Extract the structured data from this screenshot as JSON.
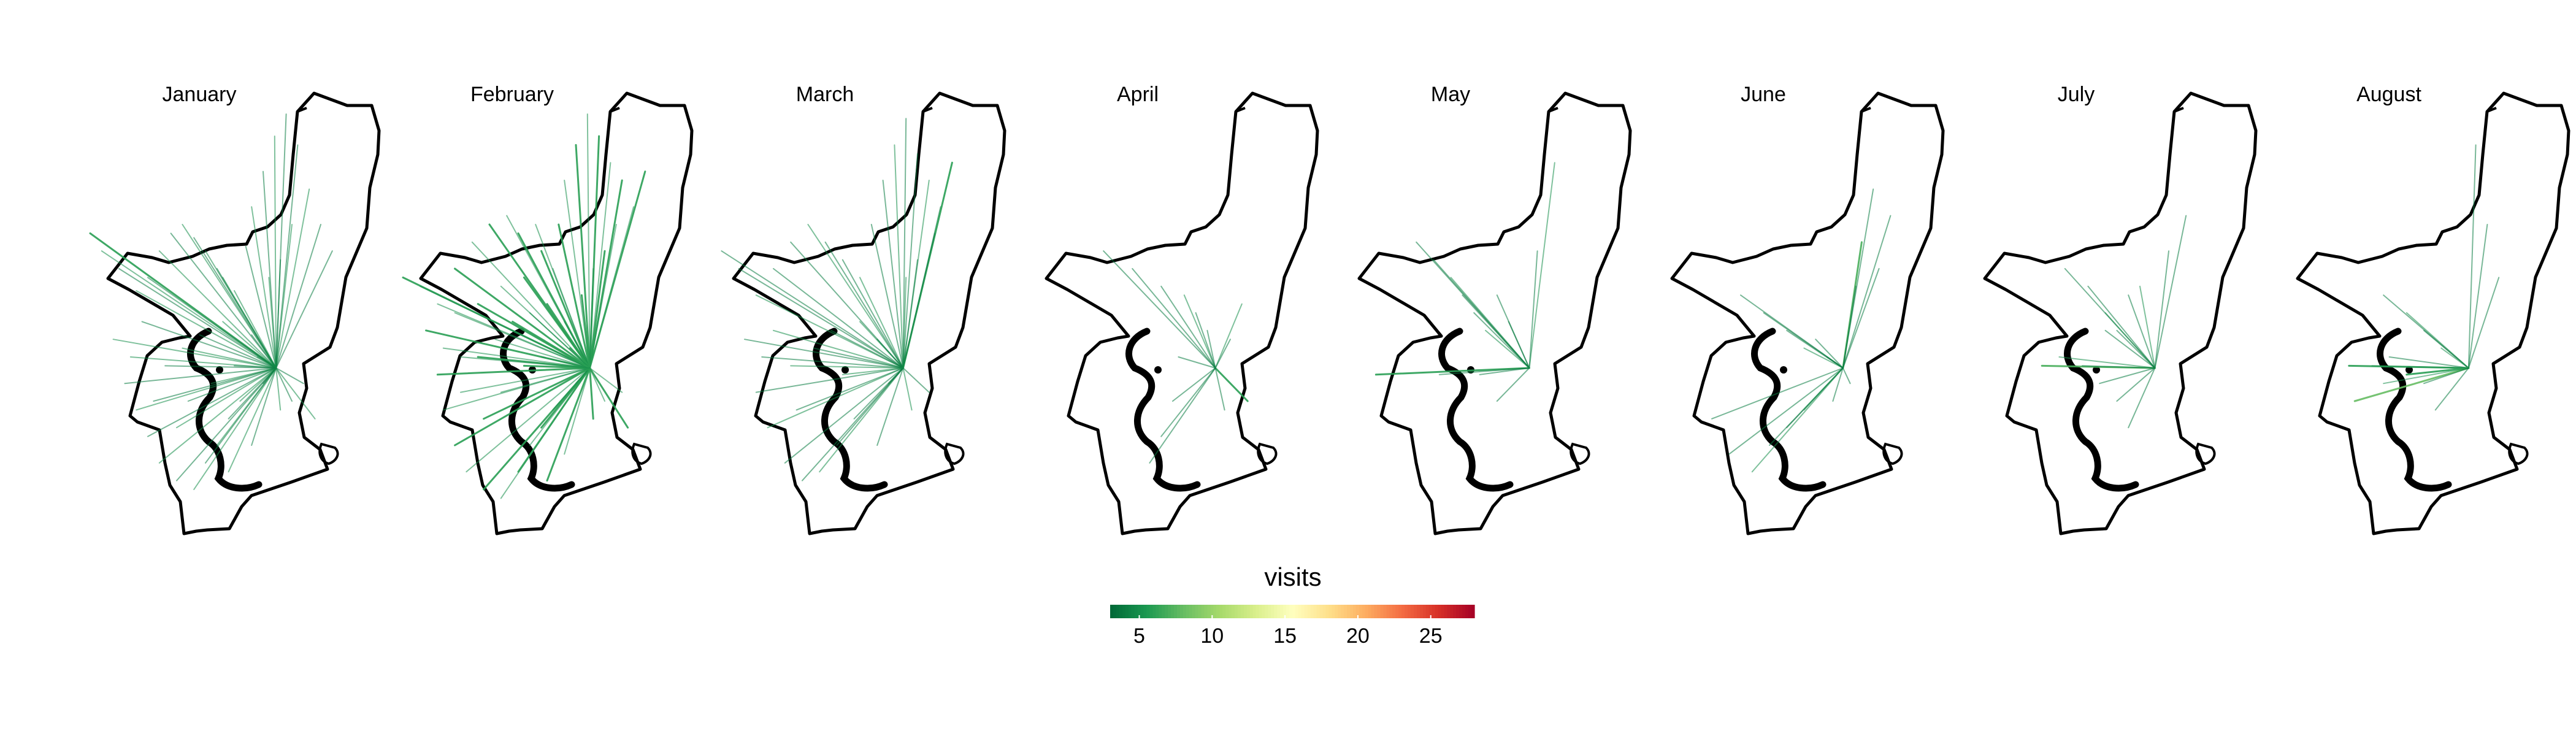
{
  "panels": [
    {
      "month": "January",
      "hub": [
        0.745,
        0.625
      ],
      "flows": [
        [
          0.1,
          0.32,
          6
        ],
        [
          0.14,
          0.36,
          5
        ],
        [
          0.2,
          0.4,
          4
        ],
        [
          0.26,
          0.45,
          5
        ],
        [
          0.3,
          0.42,
          4
        ],
        [
          0.34,
          0.36,
          5
        ],
        [
          0.38,
          0.32,
          4
        ],
        [
          0.42,
          0.3,
          5
        ],
        [
          0.46,
          0.33,
          4
        ],
        [
          0.5,
          0.36,
          5
        ],
        [
          0.54,
          0.4,
          4
        ],
        [
          0.6,
          0.45,
          5
        ],
        [
          0.64,
          0.35,
          4
        ],
        [
          0.66,
          0.26,
          5
        ],
        [
          0.7,
          0.18,
          4
        ],
        [
          0.74,
          0.1,
          5
        ],
        [
          0.78,
          0.05,
          4
        ],
        [
          0.82,
          0.12,
          4
        ],
        [
          0.86,
          0.22,
          5
        ],
        [
          0.9,
          0.3,
          4
        ],
        [
          0.94,
          0.36,
          4
        ],
        [
          0.8,
          0.3,
          5
        ],
        [
          0.76,
          0.38,
          4
        ],
        [
          0.72,
          0.42,
          5
        ],
        [
          0.24,
          0.6,
          5
        ],
        [
          0.22,
          0.66,
          4
        ],
        [
          0.26,
          0.72,
          5
        ],
        [
          0.3,
          0.78,
          4
        ],
        [
          0.34,
          0.84,
          5
        ],
        [
          0.4,
          0.88,
          4
        ],
        [
          0.46,
          0.9,
          5
        ],
        [
          0.5,
          0.84,
          4
        ],
        [
          0.54,
          0.8,
          5
        ],
        [
          0.58,
          0.74,
          4
        ],
        [
          0.62,
          0.7,
          5
        ],
        [
          0.36,
          0.62,
          4
        ],
        [
          0.42,
          0.58,
          5
        ],
        [
          0.48,
          0.55,
          4
        ],
        [
          0.56,
          0.52,
          5
        ],
        [
          0.66,
          0.55,
          4
        ],
        [
          0.68,
          0.6,
          5
        ],
        [
          0.7,
          0.66,
          4
        ],
        [
          0.76,
          0.72,
          5
        ],
        [
          0.8,
          0.7,
          4
        ],
        [
          0.84,
          0.66,
          4
        ],
        [
          0.88,
          0.74,
          5
        ],
        [
          0.66,
          0.8,
          4
        ],
        [
          0.58,
          0.86,
          5
        ],
        [
          0.28,
          0.52,
          4
        ],
        [
          0.18,
          0.56,
          5
        ],
        [
          0.32,
          0.7,
          4
        ],
        [
          0.4,
          0.76,
          5
        ],
        [
          0.44,
          0.7,
          4
        ],
        [
          0.52,
          0.66,
          5
        ],
        [
          0.6,
          0.62,
          4
        ],
        [
          0.56,
          0.42,
          5
        ]
      ]
    },
    {
      "month": "February",
      "hub": [
        0.748,
        0.625
      ],
      "flows": [
        [
          0.1,
          0.42,
          6
        ],
        [
          0.16,
          0.44,
          5
        ],
        [
          0.22,
          0.48,
          5
        ],
        [
          0.28,
          0.4,
          6
        ],
        [
          0.34,
          0.34,
          5
        ],
        [
          0.4,
          0.3,
          6
        ],
        [
          0.46,
          0.28,
          5
        ],
        [
          0.5,
          0.32,
          6
        ],
        [
          0.56,
          0.3,
          5
        ],
        [
          0.58,
          0.36,
          6
        ],
        [
          0.62,
          0.4,
          5
        ],
        [
          0.64,
          0.3,
          6
        ],
        [
          0.66,
          0.2,
          5
        ],
        [
          0.7,
          0.12,
          6
        ],
        [
          0.74,
          0.05,
          5
        ],
        [
          0.78,
          0.1,
          6
        ],
        [
          0.82,
          0.16,
          5
        ],
        [
          0.86,
          0.2,
          6
        ],
        [
          0.9,
          0.26,
          5
        ],
        [
          0.94,
          0.18,
          6
        ],
        [
          0.84,
          0.3,
          5
        ],
        [
          0.8,
          0.36,
          6
        ],
        [
          0.76,
          0.4,
          5
        ],
        [
          0.72,
          0.46,
          6
        ],
        [
          0.24,
          0.58,
          5
        ],
        [
          0.22,
          0.64,
          6
        ],
        [
          0.24,
          0.72,
          5
        ],
        [
          0.28,
          0.8,
          6
        ],
        [
          0.32,
          0.86,
          5
        ],
        [
          0.38,
          0.9,
          6
        ],
        [
          0.44,
          0.92,
          5
        ],
        [
          0.5,
          0.86,
          6
        ],
        [
          0.54,
          0.8,
          5
        ],
        [
          0.58,
          0.76,
          6
        ],
        [
          0.62,
          0.72,
          5
        ],
        [
          0.36,
          0.6,
          6
        ],
        [
          0.42,
          0.56,
          5
        ],
        [
          0.48,
          0.52,
          6
        ],
        [
          0.54,
          0.5,
          5
        ],
        [
          0.6,
          0.48,
          6
        ],
        [
          0.66,
          0.52,
          5
        ],
        [
          0.68,
          0.58,
          6
        ],
        [
          0.7,
          0.66,
          5
        ],
        [
          0.76,
          0.74,
          6
        ],
        [
          0.8,
          0.7,
          5
        ],
        [
          0.86,
          0.68,
          5
        ],
        [
          0.88,
          0.76,
          6
        ],
        [
          0.66,
          0.82,
          5
        ],
        [
          0.6,
          0.88,
          6
        ],
        [
          0.28,
          0.5,
          5
        ],
        [
          0.18,
          0.54,
          6
        ],
        [
          0.3,
          0.68,
          5
        ],
        [
          0.38,
          0.74,
          6
        ],
        [
          0.44,
          0.68,
          5
        ],
        [
          0.52,
          0.62,
          6
        ],
        [
          0.58,
          0.6,
          5
        ],
        [
          0.52,
          0.42,
          6
        ],
        [
          0.44,
          0.44,
          5
        ],
        [
          0.36,
          0.48,
          6
        ],
        [
          0.3,
          0.6,
          5
        ]
      ]
    },
    {
      "month": "March",
      "hub": [
        0.75,
        0.625
      ],
      "flows": [
        [
          0.12,
          0.36,
          4
        ],
        [
          0.18,
          0.4,
          4
        ],
        [
          0.24,
          0.46,
          5
        ],
        [
          0.3,
          0.4,
          4
        ],
        [
          0.36,
          0.34,
          4
        ],
        [
          0.42,
          0.3,
          5
        ],
        [
          0.48,
          0.34,
          4
        ],
        [
          0.54,
          0.38,
          4
        ],
        [
          0.6,
          0.42,
          5
        ],
        [
          0.64,
          0.3,
          4
        ],
        [
          0.68,
          0.2,
          4
        ],
        [
          0.72,
          0.12,
          5
        ],
        [
          0.76,
          0.06,
          4
        ],
        [
          0.8,
          0.14,
          4
        ],
        [
          0.84,
          0.2,
          5
        ],
        [
          0.88,
          0.26,
          4
        ],
        [
          0.92,
          0.16,
          6
        ],
        [
          0.86,
          0.32,
          4
        ],
        [
          0.8,
          0.38,
          4
        ],
        [
          0.76,
          0.42,
          5
        ],
        [
          0.26,
          0.6,
          4
        ],
        [
          0.24,
          0.68,
          4
        ],
        [
          0.28,
          0.76,
          5
        ],
        [
          0.34,
          0.84,
          4
        ],
        [
          0.4,
          0.88,
          4
        ],
        [
          0.46,
          0.86,
          5
        ],
        [
          0.52,
          0.8,
          4
        ],
        [
          0.58,
          0.74,
          4
        ],
        [
          0.36,
          0.62,
          5
        ],
        [
          0.44,
          0.58,
          4
        ],
        [
          0.5,
          0.54,
          4
        ],
        [
          0.6,
          0.52,
          5
        ],
        [
          0.66,
          0.56,
          4
        ],
        [
          0.7,
          0.66,
          4
        ],
        [
          0.78,
          0.72,
          5
        ],
        [
          0.84,
          0.68,
          4
        ],
        [
          0.66,
          0.8,
          4
        ],
        [
          0.3,
          0.54,
          5
        ],
        [
          0.2,
          0.56,
          4
        ],
        [
          0.38,
          0.72,
          4
        ],
        [
          0.54,
          0.64,
          5
        ]
      ]
    },
    {
      "month": "April",
      "hub": [
        0.748,
        0.625
      ],
      "flows": [
        [
          0.36,
          0.36,
          4
        ],
        [
          0.46,
          0.4,
          4
        ],
        [
          0.56,
          0.44,
          4
        ],
        [
          0.64,
          0.46,
          5
        ],
        [
          0.68,
          0.5,
          4
        ],
        [
          0.72,
          0.54,
          4
        ],
        [
          0.84,
          0.48,
          5
        ],
        [
          0.8,
          0.56,
          4
        ],
        [
          0.86,
          0.7,
          6
        ],
        [
          0.78,
          0.72,
          4
        ],
        [
          0.6,
          0.7,
          4
        ],
        [
          0.56,
          0.78,
          4
        ],
        [
          0.52,
          0.84,
          4
        ],
        [
          0.62,
          0.6,
          4
        ]
      ]
    },
    {
      "month": "May",
      "hub": [
        0.752,
        0.625
      ],
      "flows": [
        [
          0.36,
          0.34,
          4
        ],
        [
          0.42,
          0.38,
          4
        ],
        [
          0.48,
          0.42,
          5
        ],
        [
          0.52,
          0.46,
          4
        ],
        [
          0.56,
          0.5,
          4
        ],
        [
          0.6,
          0.54,
          5
        ],
        [
          0.64,
          0.46,
          4
        ],
        [
          0.68,
          0.52,
          4
        ],
        [
          0.84,
          0.16,
          5
        ],
        [
          0.78,
          0.36,
          4
        ],
        [
          0.22,
          0.64,
          6
        ],
        [
          0.44,
          0.64,
          4
        ],
        [
          0.58,
          0.64,
          4
        ],
        [
          0.64,
          0.7,
          4
        ]
      ]
    },
    {
      "month": "June",
      "hub": [
        0.755,
        0.625
      ],
      "flows": [
        [
          0.82,
          0.34,
          7
        ],
        [
          0.86,
          0.22,
          4
        ],
        [
          0.92,
          0.28,
          4
        ],
        [
          0.88,
          0.4,
          4
        ],
        [
          0.8,
          0.44,
          4
        ],
        [
          0.4,
          0.46,
          4
        ],
        [
          0.48,
          0.5,
          4
        ],
        [
          0.56,
          0.54,
          4
        ],
        [
          0.62,
          0.58,
          5
        ],
        [
          0.66,
          0.56,
          4
        ],
        [
          0.7,
          0.6,
          4
        ],
        [
          0.3,
          0.74,
          4
        ],
        [
          0.36,
          0.82,
          4
        ],
        [
          0.44,
          0.86,
          5
        ],
        [
          0.5,
          0.8,
          4
        ],
        [
          0.56,
          0.76,
          4
        ],
        [
          0.62,
          0.72,
          5
        ],
        [
          0.72,
          0.7,
          4
        ],
        [
          0.78,
          0.66,
          4
        ]
      ]
    },
    {
      "month": "July",
      "hub": [
        0.752,
        0.625
      ],
      "flows": [
        [
          0.44,
          0.4,
          4
        ],
        [
          0.52,
          0.44,
          4
        ],
        [
          0.58,
          0.5,
          5
        ],
        [
          0.62,
          0.54,
          4
        ],
        [
          0.66,
          0.46,
          4
        ],
        [
          0.7,
          0.44,
          5
        ],
        [
          0.8,
          0.36,
          4
        ],
        [
          0.86,
          0.28,
          4
        ],
        [
          0.36,
          0.62,
          7
        ],
        [
          0.42,
          0.6,
          5
        ],
        [
          0.5,
          0.62,
          4
        ],
        [
          0.56,
          0.66,
          4
        ],
        [
          0.62,
          0.7,
          4
        ],
        [
          0.66,
          0.76,
          4
        ],
        [
          0.58,
          0.54,
          4
        ]
      ]
    },
    {
      "month": "August",
      "hub": [
        0.755,
        0.625
      ],
      "flows": [
        [
          0.78,
          0.12,
          4
        ],
        [
          0.82,
          0.3,
          4
        ],
        [
          0.86,
          0.42,
          4
        ],
        [
          0.46,
          0.46,
          4
        ],
        [
          0.54,
          0.5,
          5
        ],
        [
          0.6,
          0.54,
          4
        ],
        [
          0.66,
          0.58,
          5
        ],
        [
          0.34,
          0.62,
          6
        ],
        [
          0.42,
          0.62,
          5
        ],
        [
          0.48,
          0.6,
          4
        ],
        [
          0.36,
          0.7,
          8
        ],
        [
          0.46,
          0.66,
          5
        ],
        [
          0.54,
          0.64,
          6
        ],
        [
          0.6,
          0.66,
          4
        ],
        [
          0.64,
          0.72,
          4
        ]
      ]
    }
  ],
  "legend": {
    "title": "visits",
    "min": 3,
    "max": 28,
    "ticks": [
      {
        "value": 5,
        "label": "5"
      },
      {
        "value": 10,
        "label": "10"
      },
      {
        "value": 15,
        "label": "15"
      },
      {
        "value": 20,
        "label": "20"
      },
      {
        "value": 25,
        "label": "25"
      }
    ],
    "palette": [
      "#006837",
      "#1a9850",
      "#66bd63",
      "#a6d96a",
      "#d9ef8b",
      "#ffffbf",
      "#fee08b",
      "#fdae61",
      "#f46d43",
      "#d73027",
      "#a50026"
    ]
  }
}
